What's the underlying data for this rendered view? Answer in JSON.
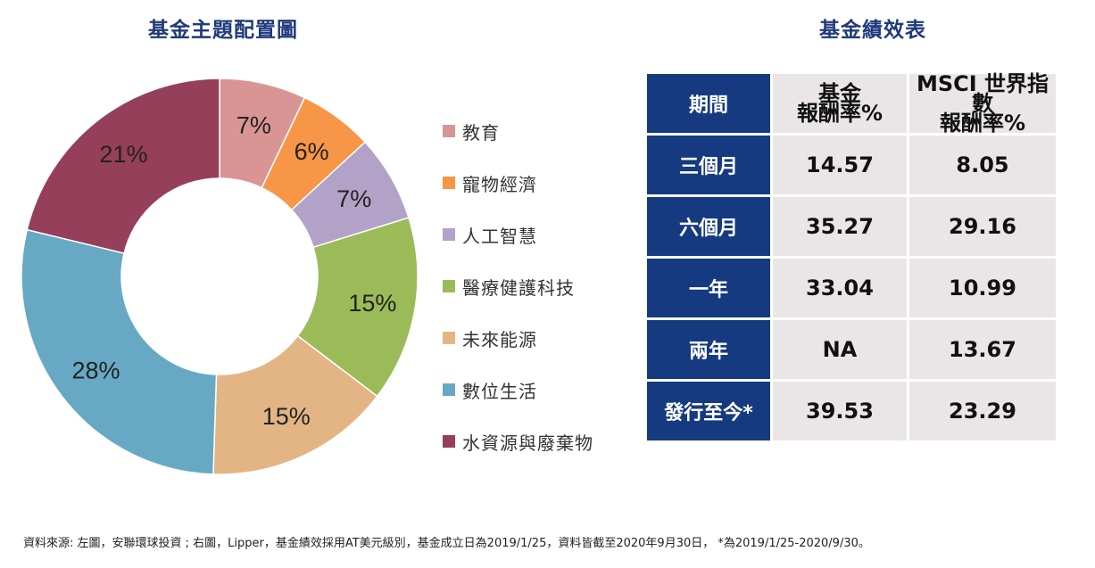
{
  "pie_title": "基金主題配置圖",
  "table_title": "基金績效表",
  "chart_data": {
    "type": "pie",
    "donut": true,
    "title": "基金主題配置圖",
    "legend_position": "right",
    "slices": [
      {
        "label": "教育",
        "value": 7,
        "display": "7%",
        "color": "#d99594"
      },
      {
        "label": "寵物經濟",
        "value": 6,
        "display": "6%",
        "color": "#f79646"
      },
      {
        "label": "人工智慧",
        "value": 7,
        "display": "7%",
        "color": "#b3a2c7"
      },
      {
        "label": "醫療健護科技",
        "value": 15,
        "display": "15%",
        "color": "#9bbb59"
      },
      {
        "label": "未來能源",
        "value": 15,
        "display": "15%",
        "color": "#e3b584"
      },
      {
        "label": "數位生活",
        "value": 28,
        "display": "28%",
        "color": "#67a9c4"
      },
      {
        "label": "水資源與廢棄物",
        "value": 21,
        "display": "21%",
        "color": "#953f5a"
      }
    ]
  },
  "performance_table": {
    "header": {
      "period": "期間",
      "fund_line1": "基金",
      "fund_line2": "報酬率%",
      "msci_line1": "MSCI 世界指數",
      "msci_line2": "報酬率%"
    },
    "rows": [
      {
        "period": "三個月",
        "fund": "14.57",
        "msci": "8.05"
      },
      {
        "period": "六個月",
        "fund": "35.27",
        "msci": "29.16"
      },
      {
        "period": "一年",
        "fund": "33.04",
        "msci": "10.99"
      },
      {
        "period": "兩年",
        "fund": "NA",
        "msci": "13.67"
      },
      {
        "period": "發行至今*",
        "fund": "39.53",
        "msci": "23.29"
      }
    ]
  },
  "colors": {
    "title": "#1f3a7a",
    "table_header": "#163a80",
    "table_cell": "#eae6e7"
  },
  "footnote": "資料來源: 左圖，安聯環球投資 ; 右圖，Lipper，基金績效採用AT美元級別，基金成立日為2019/1/25，資料皆截至2020年9月30日， *為2019/1/25-2020/9/30。"
}
